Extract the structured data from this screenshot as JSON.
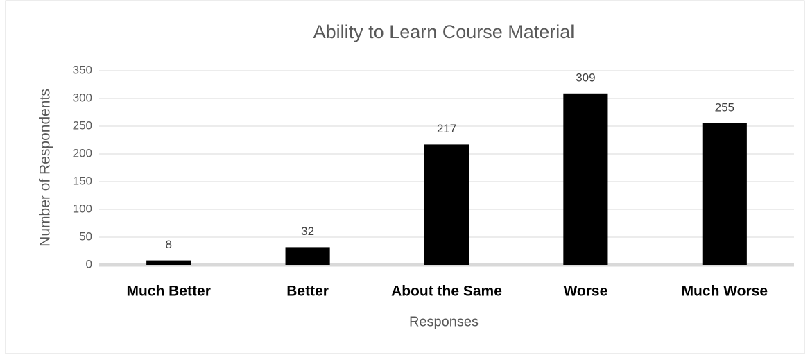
{
  "chart_data": {
    "type": "bar",
    "title": "Ability to Learn Course Material",
    "x_label": "Responses",
    "y_label": "Number of Respondents",
    "categories": [
      "Much Better",
      "Better",
      "About the Same",
      "Worse",
      "Much Worse"
    ],
    "values": [
      8,
      32,
      217,
      309,
      255
    ],
    "color": "#000000",
    "ylim": [
      0,
      350
    ],
    "yticks": [
      0,
      50,
      100,
      150,
      200,
      250,
      300,
      350
    ],
    "grid": true,
    "data_labels": true
  }
}
